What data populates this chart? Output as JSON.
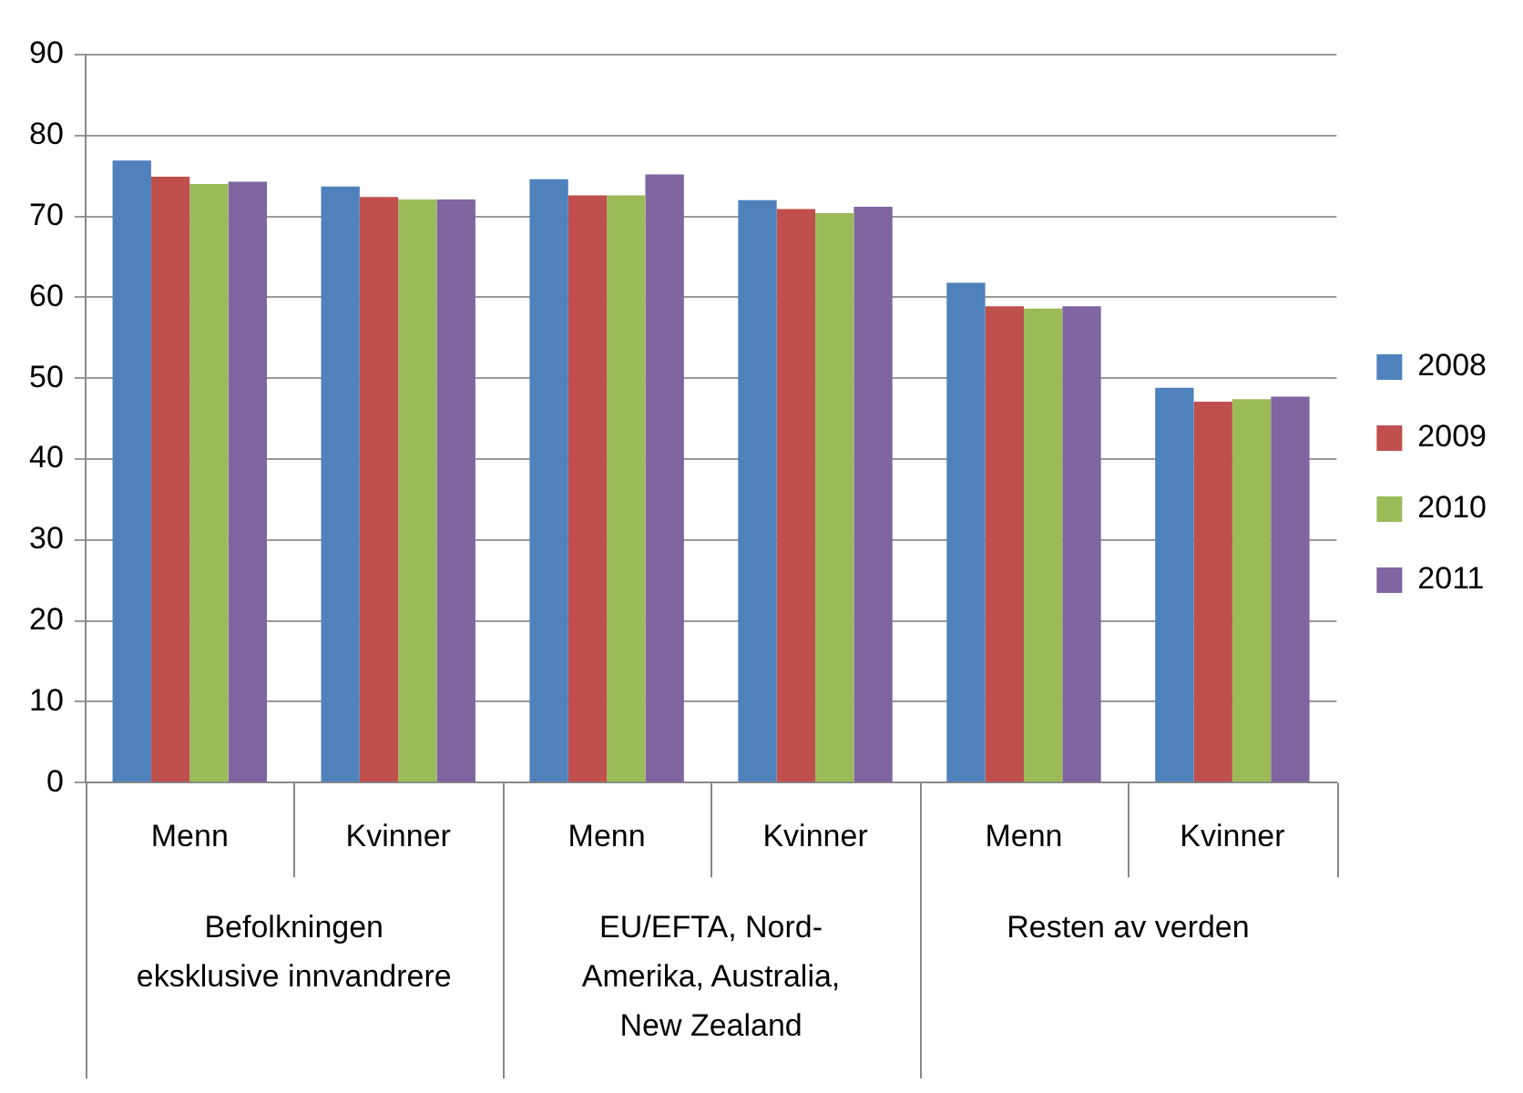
{
  "chart_data": {
    "type": "bar",
    "categories": [
      "Menn",
      "Kvinner",
      "Menn",
      "Kvinner",
      "Menn",
      "Kvinner"
    ],
    "annotations": [
      "Befolkningen eksklusive innvandrere",
      "EU/EFTA, Nord-Amerika, Australia, New Zealand",
      "Resten av verden"
    ],
    "series": [
      {
        "name": "2008",
        "color": "#4f81bd",
        "values": [
          76.9,
          73.7,
          74.6,
          72.0,
          61.8,
          48.8
        ]
      },
      {
        "name": "2009",
        "color": "#c0504d",
        "values": [
          74.9,
          72.4,
          72.6,
          70.9,
          58.9,
          47.1
        ]
      },
      {
        "name": "2010",
        "color": "#9bbb59",
        "values": [
          74.0,
          72.1,
          72.6,
          70.4,
          58.6,
          47.4
        ]
      },
      {
        "name": "2011",
        "color": "#8064a2",
        "values": [
          74.3,
          72.1,
          75.2,
          71.2,
          58.9,
          47.7
        ]
      }
    ],
    "ylim": [
      0,
      90
    ],
    "yticks": [
      0,
      10,
      20,
      30,
      40,
      50,
      60,
      70,
      80,
      90
    ],
    "grid": "y",
    "legend": "right"
  }
}
